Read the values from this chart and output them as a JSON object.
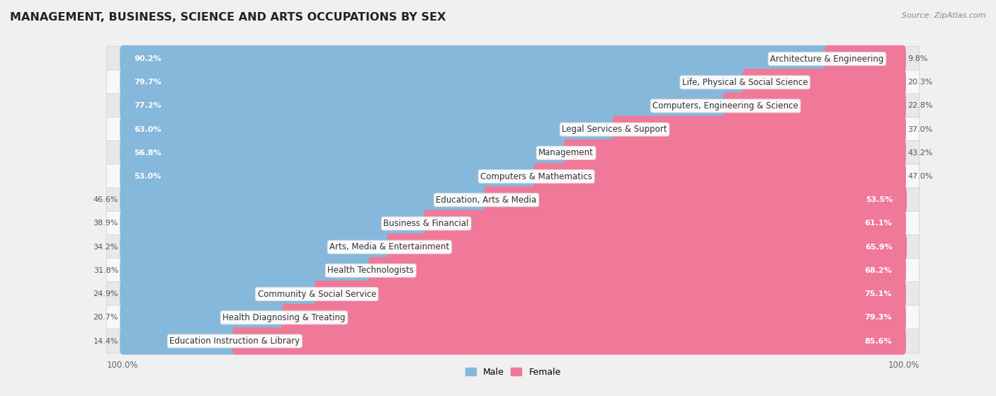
{
  "title": "MANAGEMENT, BUSINESS, SCIENCE AND ARTS OCCUPATIONS BY SEX",
  "source": "Source: ZipAtlas.com",
  "categories": [
    "Architecture & Engineering",
    "Life, Physical & Social Science",
    "Computers, Engineering & Science",
    "Legal Services & Support",
    "Management",
    "Computers & Mathematics",
    "Education, Arts & Media",
    "Business & Financial",
    "Arts, Media & Entertainment",
    "Health Technologists",
    "Community & Social Service",
    "Health Diagnosing & Treating",
    "Education Instruction & Library"
  ],
  "male": [
    90.2,
    79.7,
    77.2,
    63.0,
    56.8,
    53.0,
    46.6,
    38.9,
    34.2,
    31.8,
    24.9,
    20.7,
    14.4
  ],
  "female": [
    9.8,
    20.3,
    22.8,
    37.0,
    43.2,
    47.0,
    53.5,
    61.1,
    65.9,
    68.2,
    75.1,
    79.3,
    85.6
  ],
  "male_color": "#85b8db",
  "female_color": "#f07898",
  "bg_color": "#f0f0f0",
  "row_colors": [
    "#e8e8e8",
    "#f8f8f8"
  ],
  "title_fontsize": 11.5,
  "label_fontsize": 8.5,
  "value_fontsize": 8.0,
  "tick_fontsize": 8.5,
  "legend_fontsize": 9,
  "bar_height": 0.55
}
